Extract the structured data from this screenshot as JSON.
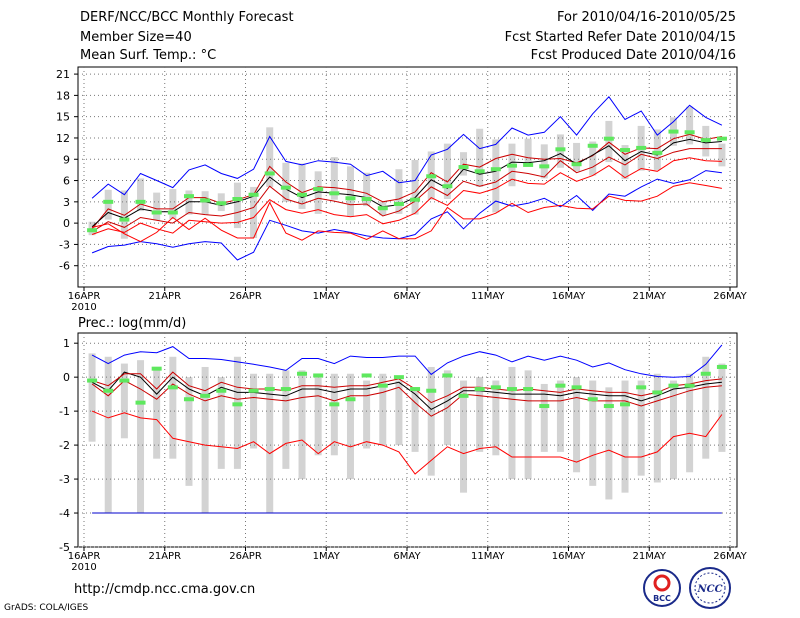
{
  "header": {
    "title": "DERF/NCC/BCC Monthly Forecast",
    "member_size": "Member Size=40",
    "variable": "Mean Surf. Temp.: °C",
    "period": "For 2010/04/16-2010/05/25",
    "started_refer": "Fcst Started Refer Date 2010/04/15",
    "produced": "Fcst Produced Date 2010/04/16"
  },
  "footer": {
    "url": "http://cmdp.ncc.cma.gov.cn",
    "credit": "GrADS: COLA/IGES",
    "logo_bcc": "BCC",
    "logo_ncc": "NCC"
  },
  "colors": {
    "max_line": "#0000ff",
    "min_line": "#ff0000",
    "spread_line": "#cc0000",
    "mean_line": "#000000",
    "obs_marker": "#5ee85e",
    "box": "#d3d3d3",
    "floor_line": "#0000cc"
  },
  "chart_data": [
    {
      "type": "line",
      "title": "Mean Surf. Temp.: °C",
      "x_ticks": [
        "16APR",
        "21APR",
        "26APR",
        "1MAY",
        "6MAY",
        "11MAY",
        "16MAY",
        "21MAY",
        "26MAY"
      ],
      "x_year": "2010",
      "y_ticks": [
        -6,
        -3,
        0,
        3,
        6,
        9,
        12,
        15,
        18,
        21
      ],
      "ylim": [
        -9,
        22
      ],
      "days": 40,
      "series": [
        {
          "name": "max",
          "values": [
            -4.2,
            -3.3,
            -3.1,
            -2.6,
            -2.9,
            -3.4,
            -2.9,
            -2.6,
            -2.8,
            -5.2,
            -4.1,
            0.4,
            -0.3,
            -1.1,
            -1.4,
            -0.9,
            -1.3,
            -1.8,
            -2.1,
            -2.2,
            -1.6,
            0.6,
            1.6,
            -0.8,
            1.4,
            3.1,
            2.4,
            2.8,
            3.5,
            2.3,
            3.9,
            1.8,
            4.1,
            3.8,
            5.1,
            6.2,
            5.6,
            6.1,
            7.4,
            7.1
          ]
        },
        {
          "name": "p90",
          "values": [
            3.5,
            5.5,
            4.0,
            7.0,
            6.0,
            5.0,
            7.5,
            8.2,
            7.0,
            6.3,
            7.6,
            12.2,
            8.7,
            8.2,
            8.8,
            8.6,
            8.3,
            6.7,
            7.3,
            5.7,
            6.0,
            9.6,
            10.4,
            12.5,
            10.5,
            11.1,
            13.4,
            12.4,
            12.8,
            15.0,
            12.4,
            15.4,
            17.8,
            14.6,
            15.8,
            12.4,
            14.3,
            16.6,
            14.9,
            13.8
          ]
        },
        {
          "name": "upper",
          "values": [
            -0.8,
            2.0,
            1.1,
            2.7,
            2.0,
            2.0,
            3.6,
            3.6,
            2.8,
            3.3,
            4.0,
            8.0,
            5.8,
            4.3,
            5.1,
            5.0,
            4.7,
            4.2,
            3.0,
            3.4,
            4.4,
            7.1,
            5.8,
            8.3,
            7.9,
            9.1,
            9.7,
            9.2,
            9.0,
            9.1,
            8.5,
            9.5,
            11.4,
            9.7,
            10.6,
            10.5,
            11.9,
            12.5,
            11.8,
            12.2
          ]
        },
        {
          "name": "mean",
          "values": [
            -0.5,
            1.5,
            0.7,
            2.0,
            1.6,
            1.6,
            3.0,
            3.0,
            2.5,
            3.0,
            3.8,
            6.5,
            4.8,
            3.6,
            4.4,
            4.2,
            4.0,
            3.6,
            2.3,
            2.6,
            3.6,
            6.1,
            4.9,
            7.6,
            6.9,
            7.3,
            8.6,
            8.5,
            8.8,
            9.8,
            8.3,
            9.6,
            10.9,
            8.8,
            10.1,
            9.6,
            11.3,
            11.8,
            11.3,
            11.5
          ]
        },
        {
          "name": "lower",
          "values": [
            -1.2,
            0.2,
            -0.6,
            0.8,
            0.4,
            0.0,
            1.5,
            1.2,
            1.0,
            1.5,
            2.2,
            5.2,
            3.4,
            2.7,
            3.5,
            3.1,
            2.6,
            2.7,
            1.0,
            1.7,
            3.1,
            5.1,
            3.9,
            5.9,
            5.2,
            5.8,
            7.3,
            7.0,
            6.5,
            8.8,
            7.1,
            7.9,
            9.3,
            8.2,
            9.7,
            9.1,
            10.0,
            10.5,
            10.5,
            10.5
          ]
        },
        {
          "name": "p10",
          "values": [
            -1.6,
            -0.8,
            -1.3,
            0.0,
            -0.8,
            -1.4,
            0.4,
            0.2,
            0.0,
            0.1,
            0.8,
            3.3,
            1.9,
            1.4,
            1.9,
            1.2,
            0.9,
            1.2,
            -0.1,
            0.4,
            1.4,
            3.6,
            2.5,
            4.6,
            4.2,
            4.9,
            6.2,
            5.6,
            5.5,
            7.1,
            5.9,
            6.7,
            8.1,
            6.4,
            7.7,
            7.3,
            8.8,
            9.2,
            8.8,
            8.7
          ]
        },
        {
          "name": "min",
          "values": [
            -0.6,
            -0.1,
            -1.5,
            -2.6,
            -1.3,
            0.8,
            -0.9,
            0.7,
            -1.0,
            -2.1,
            -2.1,
            2.9,
            -1.4,
            -2.4,
            -1.1,
            -1.3,
            -1.4,
            -2.3,
            -1.1,
            -2.2,
            -2.2,
            -1.1,
            2.2,
            0.6,
            0.6,
            1.4,
            2.8,
            1.5,
            2.2,
            2.5,
            2.1,
            2.0,
            3.8,
            3.2,
            3.1,
            3.8,
            5.2,
            5.7,
            5.3,
            4.9
          ]
        },
        {
          "name": "obs",
          "values": [
            -1.0,
            3.0,
            0.5,
            3.0,
            1.5,
            1.5,
            3.8,
            3.2,
            2.8,
            3.4,
            4.0,
            7.0,
            5.0,
            4.0,
            4.8,
            4.2,
            3.5,
            3.4,
            2.1,
            2.7,
            3.3,
            6.6,
            5.2,
            7.9,
            7.3,
            7.6,
            8.1,
            8.2,
            8.0,
            10.4,
            8.3,
            10.9,
            11.9,
            10.3,
            10.6,
            9.9,
            12.9,
            12.8,
            11.7,
            11.9
          ]
        }
      ],
      "box_ranges": [
        [
          -1.7,
          0.2
        ],
        [
          0.5,
          4.7
        ],
        [
          -2.2,
          4.6
        ],
        [
          1.7,
          6.3
        ],
        [
          0.4,
          4.3
        ],
        [
          0.6,
          4.8
        ],
        [
          1.2,
          4.6
        ],
        [
          1.2,
          4.5
        ],
        [
          1.7,
          4.2
        ],
        [
          -0.7,
          5.7
        ],
        [
          -2.1,
          5.1
        ],
        [
          5.1,
          13.5
        ],
        [
          3.0,
          8.5
        ],
        [
          2.0,
          8.4
        ],
        [
          1.3,
          7.3
        ],
        [
          3.3,
          9.3
        ],
        [
          0.9,
          8.0
        ],
        [
          2.4,
          7.1
        ],
        [
          1.1,
          3.0
        ],
        [
          1.3,
          7.6
        ],
        [
          1.2,
          8.9
        ],
        [
          3.3,
          10.1
        ],
        [
          3.4,
          11.2
        ],
        [
          6.7,
          10.0
        ],
        [
          5.1,
          13.3
        ],
        [
          1.5,
          11.8
        ],
        [
          5.2,
          11.2
        ],
        [
          8.2,
          11.9
        ],
        [
          6.3,
          11.1
        ],
        [
          7.8,
          12.5
        ],
        [
          7.3,
          11.3
        ],
        [
          6.7,
          11.5
        ],
        [
          8.6,
          14.4
        ],
        [
          6.2,
          11.0
        ],
        [
          7.4,
          13.7
        ],
        [
          7.5,
          13.2
        ],
        [
          10.9,
          14.9
        ],
        [
          11.1,
          16.4
        ],
        [
          9.4,
          13.7
        ],
        [
          8.0,
          11.2
        ]
      ]
    },
    {
      "type": "line",
      "title": "Prec.: log(mm/d)",
      "x_ticks": [
        "16APR",
        "21APR",
        "26APR",
        "1MAY",
        "6MAY",
        "11MAY",
        "16MAY",
        "21MAY",
        "26MAY"
      ],
      "x_year": "2010",
      "y_ticks": [
        -5,
        -4,
        -3,
        -2,
        -1,
        0,
        1
      ],
      "ylim": [
        -5,
        1.3
      ],
      "days": 40,
      "series": [
        {
          "name": "max",
          "values": [
            0.65,
            0.4,
            0.65,
            0.75,
            0.72,
            0.9,
            0.55,
            0.55,
            0.52,
            0.45,
            0.38,
            0.3,
            0.2,
            0.55,
            0.55,
            0.4,
            0.62,
            0.58,
            0.58,
            0.62,
            0.62,
            0.08,
            0.42,
            0.62,
            0.75,
            0.65,
            0.45,
            0.62,
            0.5,
            0.62,
            0.5,
            0.3,
            0.42,
            0.22,
            0.1,
            0.02,
            0.0,
            0.02,
            0.38,
            0.95
          ]
        },
        {
          "name": "mean",
          "values": [
            -0.15,
            -0.4,
            0.15,
            0.0,
            -0.5,
            0.0,
            -0.35,
            -0.55,
            -0.3,
            -0.45,
            -0.45,
            -0.5,
            -0.55,
            -0.35,
            -0.35,
            -0.45,
            -0.35,
            -0.35,
            -0.25,
            -0.15,
            -0.5,
            -0.95,
            -0.7,
            -0.4,
            -0.4,
            -0.45,
            -0.5,
            -0.5,
            -0.5,
            -0.55,
            -0.45,
            -0.5,
            -0.55,
            -0.55,
            -0.7,
            -0.55,
            -0.35,
            -0.3,
            -0.2,
            -0.15
          ]
        },
        {
          "name": "upper",
          "values": [
            -0.2,
            -0.55,
            -0.1,
            -0.35,
            -0.65,
            -0.2,
            -0.5,
            -0.7,
            -0.55,
            -0.65,
            -0.6,
            -0.65,
            -0.7,
            -0.6,
            -0.55,
            -0.7,
            -0.55,
            -0.55,
            -0.45,
            -0.3,
            -0.75,
            -1.15,
            -0.9,
            -0.5,
            -0.55,
            -0.6,
            -0.65,
            -0.7,
            -0.7,
            -0.7,
            -0.6,
            -0.7,
            -0.7,
            -0.7,
            -0.85,
            -0.7,
            -0.55,
            -0.4,
            -0.3,
            -0.25
          ]
        },
        {
          "name": "lower",
          "values": [
            -0.1,
            -0.25,
            0.1,
            0.1,
            -0.35,
            0.15,
            -0.25,
            -0.4,
            -0.15,
            -0.3,
            -0.35,
            -0.35,
            -0.4,
            -0.25,
            -0.25,
            -0.3,
            -0.25,
            -0.25,
            -0.15,
            -0.05,
            -0.35,
            -0.75,
            -0.55,
            -0.3,
            -0.3,
            -0.35,
            -0.4,
            -0.35,
            -0.4,
            -0.45,
            -0.35,
            -0.4,
            -0.45,
            -0.45,
            -0.55,
            -0.45,
            -0.25,
            -0.2,
            -0.1,
            -0.05
          ]
        },
        {
          "name": "min",
          "values": [
            -1.0,
            -1.2,
            -1.05,
            -1.2,
            -1.25,
            -1.8,
            -1.9,
            -2.0,
            -2.05,
            -2.1,
            -1.9,
            -2.25,
            -1.95,
            -1.85,
            -2.25,
            -1.9,
            -2.05,
            -1.9,
            -2.0,
            -2.2,
            -2.85,
            -2.45,
            -2.05,
            -2.25,
            -2.1,
            -2.05,
            -2.35,
            -2.35,
            -2.35,
            -2.35,
            -2.5,
            -2.3,
            -2.15,
            -2.35,
            -2.35,
            -2.2,
            -1.75,
            -1.65,
            -1.75,
            -1.1
          ]
        },
        {
          "name": "obs",
          "values": [
            -0.1,
            -0.4,
            -0.1,
            -0.75,
            0.25,
            -0.3,
            -0.65,
            -0.55,
            -0.4,
            -0.8,
            -0.4,
            -0.35,
            -0.35,
            0.1,
            0.05,
            -0.8,
            -0.65,
            0.05,
            -0.25,
            0.0,
            -0.35,
            -0.4,
            0.05,
            -0.55,
            -0.35,
            -0.3,
            -0.35,
            -0.35,
            -0.85,
            -0.25,
            -0.3,
            -0.65,
            -0.85,
            -0.8,
            -0.3,
            -0.45,
            -0.25,
            -0.25,
            0.1,
            0.3
          ]
        },
        {
          "name": "floor",
          "values": [
            -4,
            -4,
            -4,
            -4,
            -4,
            -4,
            -4,
            -4,
            -4,
            -4,
            -4,
            -4,
            -4,
            -4,
            -4,
            -4,
            -4,
            -4,
            -4,
            -4,
            -4,
            -4,
            -4,
            -4,
            -4,
            -4,
            -4,
            -4,
            -4,
            -4,
            -4,
            -4,
            -4,
            -4,
            -4,
            -4,
            -4,
            -4,
            -4,
            -4
          ]
        }
      ],
      "box_ranges": [
        [
          -1.9,
          0.7
        ],
        [
          -4.0,
          0.6
        ],
        [
          -1.8,
          0.4
        ],
        [
          -4.0,
          0.5
        ],
        [
          -2.4,
          0.3
        ],
        [
          -2.4,
          0.6
        ],
        [
          -3.2,
          0.0
        ],
        [
          -4.0,
          0.3
        ],
        [
          -2.7,
          0.0
        ],
        [
          -2.7,
          0.6
        ],
        [
          -2.1,
          0.1
        ],
        [
          -4.0,
          0.1
        ],
        [
          -2.7,
          0.2
        ],
        [
          -3.0,
          0.2
        ],
        [
          -2.3,
          0.0
        ],
        [
          -2.3,
          0.1
        ],
        [
          -3.0,
          0.1
        ],
        [
          -2.1,
          -0.1
        ],
        [
          -2.0,
          0.1
        ],
        [
          -2.0,
          -0.1
        ],
        [
          -2.2,
          -0.3
        ],
        [
          -2.9,
          0.3
        ],
        [
          -2.0,
          0.2
        ],
        [
          -3.4,
          -0.1
        ],
        [
          -2.2,
          0.0
        ],
        [
          -2.3,
          -0.1
        ],
        [
          -3.0,
          0.3
        ],
        [
          -3.0,
          0.2
        ],
        [
          -2.2,
          -0.2
        ],
        [
          -2.2,
          -0.1
        ],
        [
          -2.8,
          0.0
        ],
        [
          -3.2,
          -0.1
        ],
        [
          -3.6,
          -0.3
        ],
        [
          -3.4,
          -0.1
        ],
        [
          -2.9,
          -0.1
        ],
        [
          -3.1,
          0.1
        ],
        [
          -3.0,
          -0.1
        ],
        [
          -2.8,
          0.1
        ],
        [
          -2.4,
          0.6
        ],
        [
          -2.2,
          0.4
        ]
      ]
    }
  ]
}
